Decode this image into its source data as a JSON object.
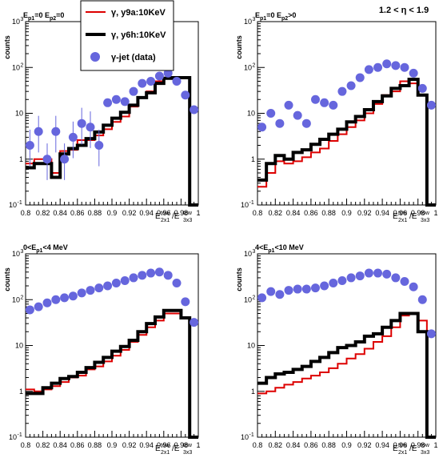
{
  "header": {
    "eta_range": "1.2 < η < 1.9"
  },
  "legend": {
    "entries": [
      {
        "label": "γ, y9a:10KeV",
        "color": "#dd0000",
        "kind": "line-thin"
      },
      {
        "label": "γ, y6h:10KeV",
        "color": "#000000",
        "kind": "line-thick"
      },
      {
        "label": "γ-jet (data)",
        "color": "#6666dd",
        "kind": "marker"
      }
    ]
  },
  "chart_data": [
    {
      "type": "line",
      "panel_label": {
        "main": "E",
        "sub1": "p1",
        "mid": "=0 E",
        "sub2": "p2",
        "tail": "=0"
      },
      "ylabel": "counts",
      "xlabel": {
        "main": "E",
        "sup1": "tow",
        "sub1": "2x1",
        "slash": "/E",
        "sup2": "tow",
        "sub2": "3x3"
      },
      "xlim": [
        0.8,
        1.0
      ],
      "ylim": [
        0.1,
        1000
      ],
      "yscale": "log",
      "x_ticks": [
        "0.8",
        "0.82",
        "0.84",
        "0.86",
        "0.88",
        "0.9",
        "0.92",
        "0.94",
        "0.96",
        "0.98",
        "1"
      ],
      "y_ticks": [
        "10^-1",
        "1",
        "10",
        "10^2",
        "10^3"
      ],
      "x": [
        0.805,
        0.815,
        0.825,
        0.835,
        0.845,
        0.855,
        0.865,
        0.875,
        0.885,
        0.895,
        0.905,
        0.915,
        0.925,
        0.935,
        0.945,
        0.955,
        0.965,
        0.975,
        0.985,
        0.995
      ],
      "series": [
        {
          "name": "γ, y9a:10KeV",
          "values": [
            0.8,
            1.0,
            1.0,
            0.5,
            1.5,
            1.6,
            2.6,
            2.6,
            3.3,
            4.5,
            6.5,
            8.5,
            14,
            22,
            30,
            50,
            58,
            58,
            62,
            0.1
          ]
        },
        {
          "name": "γ, y6h:10KeV",
          "values": [
            0.65,
            0.8,
            0.8,
            0.4,
            1.3,
            1.7,
            2.0,
            2.8,
            3.9,
            5.5,
            7.8,
            10.5,
            15,
            22,
            28,
            45,
            58,
            60,
            60,
            0.1
          ]
        },
        {
          "name": "γ-jet (data)",
          "values": [
            2.0,
            4.0,
            1.0,
            4.0,
            1.0,
            3.0,
            6.0,
            5.0,
            2.0,
            17,
            20,
            18,
            30,
            45,
            50,
            65,
            75,
            50,
            25,
            12
          ]
        }
      ]
    },
    {
      "type": "line",
      "panel_label": {
        "main": "E",
        "sub1": "p1",
        "mid": "=0 E",
        "sub2": "p2",
        "tail": ">0"
      },
      "ylabel": "counts",
      "xlabel": {
        "main": "E",
        "sup1": "tow",
        "sub1": "2x1",
        "slash": "/E",
        "sup2": "tow",
        "sub2": "3x3"
      },
      "xlim": [
        0.8,
        1.0
      ],
      "ylim": [
        0.1,
        1000
      ],
      "yscale": "log",
      "x_ticks": [
        "0.8",
        "0.82",
        "0.84",
        "0.86",
        "0.88",
        "0.9",
        "0.92",
        "0.94",
        "0.96",
        "0.98",
        "1"
      ],
      "y_ticks": [
        "10^-1",
        "1",
        "10",
        "10^2",
        "10^3"
      ],
      "x": [
        0.805,
        0.815,
        0.825,
        0.835,
        0.845,
        0.855,
        0.865,
        0.875,
        0.885,
        0.895,
        0.905,
        0.915,
        0.925,
        0.935,
        0.945,
        0.955,
        0.965,
        0.975,
        0.985,
        0.995
      ],
      "series": [
        {
          "name": "γ, y9a:10KeV",
          "values": [
            0.25,
            0.5,
            0.9,
            0.8,
            0.9,
            1.1,
            1.4,
            1.7,
            2.5,
            3.5,
            5.0,
            7.0,
            10,
            16,
            25,
            30,
            50,
            45,
            25,
            0.1
          ]
        },
        {
          "name": "γ, y6h:10KeV",
          "values": [
            0.35,
            0.8,
            1.2,
            1.0,
            1.4,
            1.6,
            2.1,
            2.7,
            3.5,
            4.5,
            6.5,
            8.5,
            12,
            18,
            24,
            35,
            40,
            55,
            25,
            0.1
          ]
        },
        {
          "name": "γ-jet (data)",
          "values": [
            5.0,
            10,
            6.0,
            15,
            9.0,
            6.0,
            20,
            17,
            15,
            30,
            40,
            60,
            90,
            100,
            120,
            110,
            100,
            75,
            35,
            15
          ]
        }
      ]
    },
    {
      "type": "line",
      "panel_label": {
        "main": "0<E",
        "sub1": "p1",
        "mid": "<4 MeV",
        "sub2": "",
        "tail": ""
      },
      "ylabel": "counts",
      "xlabel": {
        "main": "E",
        "sup1": "tow",
        "sub1": "2x1",
        "slash": "/E",
        "sup2": "tow",
        "sub2": "3x3"
      },
      "xlim": [
        0.8,
        1.0
      ],
      "ylim": [
        0.1,
        1000
      ],
      "yscale": "log",
      "x_ticks": [
        "0.8",
        "0.82",
        "0.84",
        "0.86",
        "0.88",
        "0.9",
        "0.92",
        "0.94",
        "0.96",
        "0.98",
        "1"
      ],
      "y_ticks": [
        "10^-1",
        "1",
        "10",
        "10^2",
        "10^3"
      ],
      "x": [
        0.805,
        0.815,
        0.825,
        0.835,
        0.845,
        0.855,
        0.865,
        0.875,
        0.885,
        0.895,
        0.905,
        0.915,
        0.925,
        0.935,
        0.945,
        0.955,
        0.965,
        0.975,
        0.985,
        0.995
      ],
      "series": [
        {
          "name": "γ, y9a:10KeV",
          "values": [
            1.1,
            1.0,
            1.1,
            1.3,
            1.6,
            2.0,
            2.2,
            3.0,
            3.5,
            4.5,
            6.0,
            8.0,
            12,
            17,
            25,
            35,
            50,
            50,
            40,
            0.1
          ]
        },
        {
          "name": "γ, y6h:10KeV",
          "values": [
            0.9,
            0.9,
            1.2,
            1.5,
            1.9,
            2.1,
            2.6,
            3.3,
            4.3,
            5.5,
            7.5,
            9.5,
            13,
            20,
            30,
            42,
            58,
            58,
            40,
            0.1
          ]
        },
        {
          "name": "γ-jet (data)",
          "values": [
            60,
            70,
            85,
            100,
            110,
            120,
            140,
            160,
            180,
            200,
            230,
            260,
            300,
            340,
            380,
            400,
            340,
            230,
            90,
            32
          ]
        }
      ]
    },
    {
      "type": "line",
      "panel_label": {
        "main": "4<E",
        "sub1": "p1",
        "mid": "<10 MeV",
        "sub2": "",
        "tail": ""
      },
      "ylabel": "counts",
      "xlabel": {
        "main": "E",
        "sup1": "tow",
        "sub1": "2x1",
        "slash": "/E",
        "sup2": "tow",
        "sub2": "3x3"
      },
      "xlim": [
        0.8,
        1.0
      ],
      "ylim": [
        0.1,
        1000
      ],
      "yscale": "log",
      "x_ticks": [
        "0.8",
        "0.82",
        "0.84",
        "0.86",
        "0.88",
        "0.9",
        "0.92",
        "0.94",
        "0.96",
        "0.98",
        "1"
      ],
      "y_ticks": [
        "10^-1",
        "1",
        "10",
        "10^2",
        "10^3"
      ],
      "x": [
        0.805,
        0.815,
        0.825,
        0.835,
        0.845,
        0.855,
        0.865,
        0.875,
        0.885,
        0.895,
        0.905,
        0.915,
        0.925,
        0.935,
        0.945,
        0.955,
        0.965,
        0.975,
        0.985,
        0.995
      ],
      "series": [
        {
          "name": "γ, y9a:10KeV",
          "values": [
            0.9,
            1.0,
            1.2,
            1.4,
            1.6,
            1.9,
            2.2,
            2.6,
            3.2,
            4.0,
            5.2,
            6.5,
            8.5,
            12,
            16,
            25,
            45,
            50,
            35,
            0.1
          ]
        },
        {
          "name": "γ, y6h:10KeV",
          "values": [
            1.5,
            2.0,
            2.4,
            2.6,
            3.0,
            3.5,
            4.5,
            5.5,
            7.0,
            9.0,
            10,
            12,
            16,
            18,
            25,
            35,
            50,
            50,
            20,
            0.1
          ]
        },
        {
          "name": "γ-jet (data)",
          "values": [
            110,
            150,
            130,
            160,
            170,
            170,
            180,
            200,
            230,
            260,
            300,
            330,
            380,
            380,
            360,
            300,
            250,
            190,
            100,
            18
          ]
        }
      ]
    }
  ]
}
